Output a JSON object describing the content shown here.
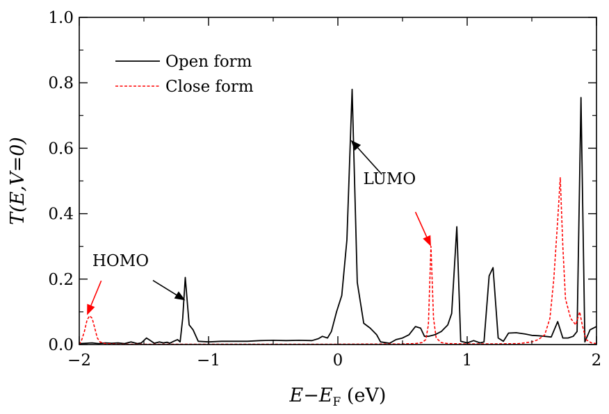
{
  "chart_data": {
    "type": "line",
    "title": "",
    "xlabel": "E−E_F (eV)",
    "xlabel_parts": {
      "main": "E−E",
      "sub": "F",
      "unit": " (eV)"
    },
    "ylabel": "T(E,V=0)",
    "xlim": [
      -2,
      2
    ],
    "ylim": [
      0,
      1.0
    ],
    "x_ticks": [
      -2,
      -1,
      0,
      1,
      2
    ],
    "x_tick_labels": [
      "−2",
      "−1",
      "0",
      "1",
      "2"
    ],
    "y_ticks": [
      0,
      0.2,
      0.4,
      0.6,
      0.8,
      1.0
    ],
    "y_tick_labels": [
      "0.0",
      "0.2",
      "0.4",
      "0.6",
      "0.8",
      "1.0"
    ],
    "grid": false,
    "legend_position": "top-left",
    "series": [
      {
        "name": "Open form",
        "color": "#000000",
        "dash": "solid",
        "points": [
          [
            -2.0,
            0.003
          ],
          [
            -1.9,
            0.005
          ],
          [
            -1.85,
            0.003
          ],
          [
            -1.8,
            0.005
          ],
          [
            -1.75,
            0.004
          ],
          [
            -1.7,
            0.005
          ],
          [
            -1.65,
            0.003
          ],
          [
            -1.6,
            0.008
          ],
          [
            -1.55,
            0.003
          ],
          [
            -1.52,
            0.005
          ],
          [
            -1.48,
            0.02
          ],
          [
            -1.45,
            0.012
          ],
          [
            -1.42,
            0.004
          ],
          [
            -1.38,
            0.008
          ],
          [
            -1.35,
            0.005
          ],
          [
            -1.32,
            0.007
          ],
          [
            -1.3,
            0.004
          ],
          [
            -1.27,
            0.01
          ],
          [
            -1.24,
            0.015
          ],
          [
            -1.22,
            0.008
          ],
          [
            -1.2,
            0.08
          ],
          [
            -1.18,
            0.205
          ],
          [
            -1.15,
            0.06
          ],
          [
            -1.12,
            0.045
          ],
          [
            -1.08,
            0.01
          ],
          [
            -1.0,
            0.008
          ],
          [
            -0.9,
            0.01
          ],
          [
            -0.8,
            0.01
          ],
          [
            -0.7,
            0.01
          ],
          [
            -0.6,
            0.012
          ],
          [
            -0.5,
            0.013
          ],
          [
            -0.4,
            0.012
          ],
          [
            -0.3,
            0.013
          ],
          [
            -0.2,
            0.012
          ],
          [
            -0.15,
            0.018
          ],
          [
            -0.12,
            0.025
          ],
          [
            -0.08,
            0.02
          ],
          [
            -0.05,
            0.04
          ],
          [
            -0.01,
            0.1
          ],
          [
            0.03,
            0.15
          ],
          [
            0.07,
            0.32
          ],
          [
            0.11,
            0.78
          ],
          [
            0.15,
            0.19
          ],
          [
            0.2,
            0.065
          ],
          [
            0.25,
            0.05
          ],
          [
            0.3,
            0.03
          ],
          [
            0.33,
            0.008
          ],
          [
            0.4,
            0.004
          ],
          [
            0.45,
            0.015
          ],
          [
            0.5,
            0.02
          ],
          [
            0.55,
            0.03
          ],
          [
            0.6,
            0.055
          ],
          [
            0.64,
            0.05
          ],
          [
            0.67,
            0.025
          ],
          [
            0.7,
            0.025
          ],
          [
            0.75,
            0.03
          ],
          [
            0.8,
            0.04
          ],
          [
            0.85,
            0.06
          ],
          [
            0.88,
            0.095
          ],
          [
            0.92,
            0.36
          ],
          [
            0.95,
            0.01
          ],
          [
            1.0,
            0.005
          ],
          [
            1.05,
            0.012
          ],
          [
            1.1,
            0.005
          ],
          [
            1.13,
            0.008
          ],
          [
            1.17,
            0.21
          ],
          [
            1.2,
            0.235
          ],
          [
            1.24,
            0.02
          ],
          [
            1.28,
            0.01
          ],
          [
            1.32,
            0.035
          ],
          [
            1.38,
            0.036
          ],
          [
            1.45,
            0.032
          ],
          [
            1.5,
            0.028
          ],
          [
            1.55,
            0.027
          ],
          [
            1.6,
            0.025
          ],
          [
            1.65,
            0.023
          ],
          [
            1.7,
            0.07
          ],
          [
            1.74,
            0.02
          ],
          [
            1.78,
            0.02
          ],
          [
            1.82,
            0.025
          ],
          [
            1.85,
            0.04
          ],
          [
            1.88,
            0.755
          ],
          [
            1.91,
            0.008
          ],
          [
            1.95,
            0.045
          ],
          [
            2.0,
            0.055
          ]
        ]
      },
      {
        "name": "Close form",
        "color": "#ff0000",
        "dash": "dashed",
        "points": [
          [
            -2.0,
            0.0
          ],
          [
            -1.98,
            0.015
          ],
          [
            -1.96,
            0.04
          ],
          [
            -1.94,
            0.075
          ],
          [
            -1.92,
            0.088
          ],
          [
            -1.9,
            0.08
          ],
          [
            -1.88,
            0.05
          ],
          [
            -1.86,
            0.02
          ],
          [
            -1.84,
            0.008
          ],
          [
            -1.8,
            0.003
          ],
          [
            -1.7,
            0.001
          ],
          [
            -1.5,
            0.001
          ],
          [
            -1.3,
            0.001
          ],
          [
            -1.0,
            0.001
          ],
          [
            -0.5,
            0.001
          ],
          [
            0.0,
            0.001
          ],
          [
            0.5,
            0.002
          ],
          [
            0.6,
            0.003
          ],
          [
            0.65,
            0.006
          ],
          [
            0.68,
            0.015
          ],
          [
            0.7,
            0.06
          ],
          [
            0.72,
            0.3
          ],
          [
            0.74,
            0.08
          ],
          [
            0.76,
            0.02
          ],
          [
            0.8,
            0.006
          ],
          [
            0.85,
            0.003
          ],
          [
            1.0,
            0.002
          ],
          [
            1.2,
            0.002
          ],
          [
            1.4,
            0.003
          ],
          [
            1.5,
            0.008
          ],
          [
            1.55,
            0.015
          ],
          [
            1.6,
            0.03
          ],
          [
            1.64,
            0.08
          ],
          [
            1.67,
            0.2
          ],
          [
            1.7,
            0.38
          ],
          [
            1.72,
            0.51
          ],
          [
            1.74,
            0.3
          ],
          [
            1.76,
            0.14
          ],
          [
            1.8,
            0.08
          ],
          [
            1.84,
            0.06
          ],
          [
            1.87,
            0.1
          ],
          [
            1.89,
            0.06
          ],
          [
            1.92,
            0.015
          ],
          [
            1.96,
            0.005
          ],
          [
            2.0,
            0.003
          ]
        ]
      }
    ],
    "annotations": [
      {
        "text": "HOMO",
        "label_at": [
          -1.68,
          0.24
        ],
        "arrows": [
          {
            "from": [
              -1.43,
              0.196
            ],
            "to": [
              -1.18,
              0.135
            ],
            "color": "#000000"
          },
          {
            "from": [
              -1.83,
              0.195
            ],
            "to": [
              -1.94,
              0.09
            ],
            "color": "#ff0000"
          }
        ]
      },
      {
        "text": "LUMO",
        "label_at": [
          0.4,
          0.49
        ],
        "arrows": [
          {
            "from": [
              0.34,
              0.52
            ],
            "to": [
              0.1,
              0.625
            ],
            "color": "#000000"
          },
          {
            "from": [
              0.6,
              0.405
            ],
            "to": [
              0.72,
              0.3
            ],
            "color": "#ff0000"
          }
        ]
      }
    ]
  }
}
